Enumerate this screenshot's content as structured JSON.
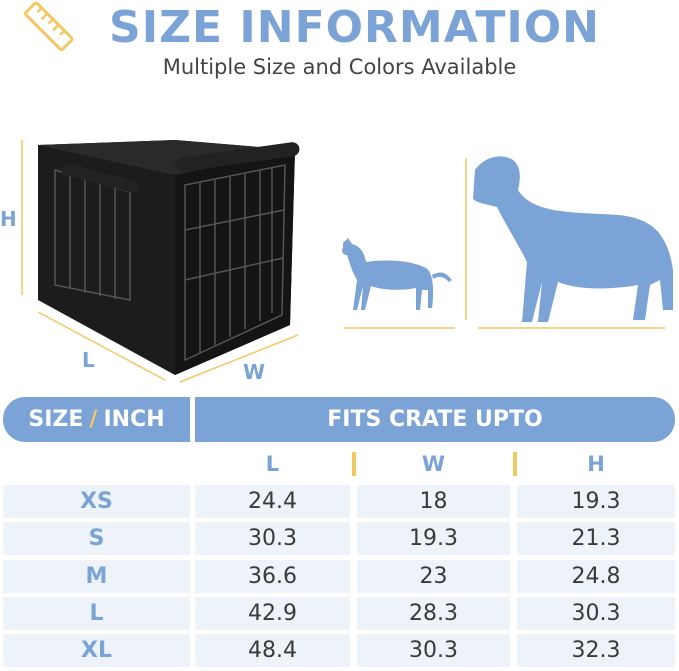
{
  "header": {
    "title": "SIZE INFORMATION",
    "subtitle": "Multiple Size and Colors Available",
    "icon": "ruler-icon"
  },
  "illustration": {
    "labels": {
      "h": "H",
      "l": "L",
      "w": "W"
    }
  },
  "table": {
    "header_left_a": "SIZE",
    "header_left_slash": "/",
    "header_left_b": "INCH",
    "header_right": "FITS CRATE UPTO",
    "columns": [
      "L",
      "W",
      "H"
    ],
    "rows": [
      {
        "size": "XS",
        "l": "24.4",
        "w": "18",
        "h": "19.3"
      },
      {
        "size": "S",
        "l": "30.3",
        "w": "19.3",
        "h": "21.3"
      },
      {
        "size": "M",
        "l": "36.6",
        "w": "23",
        "h": "24.8"
      },
      {
        "size": "L",
        "l": "42.9",
        "w": "28.3",
        "h": "30.3"
      },
      {
        "size": "XL",
        "l": "48.4",
        "w": "30.3",
        "h": "32.3"
      }
    ]
  },
  "colors": {
    "accent": "#7ba3d6",
    "gold": "#f2c764",
    "row_bg": "#eef2f9"
  }
}
